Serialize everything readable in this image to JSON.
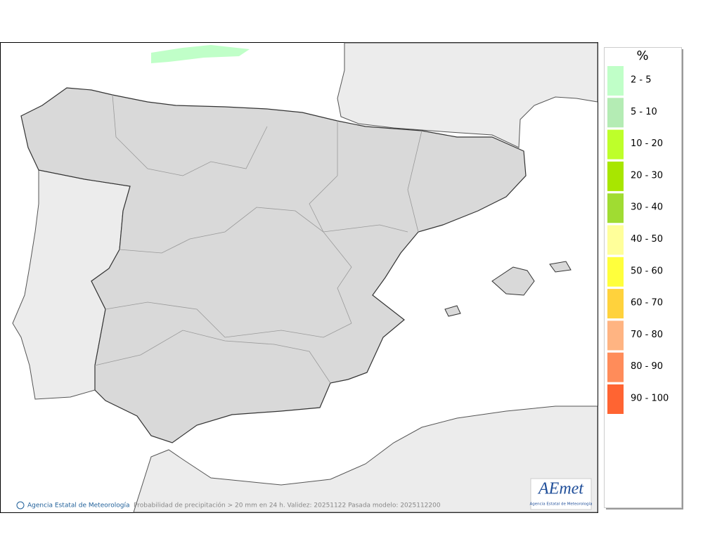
{
  "map": {
    "footer": {
      "copyright": "Agencia Estatal de Meteorología",
      "caption": "Probabilidad de precipitación > 20 mm en 24 h. Validez: 20251122 Pasada modelo: 2025112200"
    },
    "logo": {
      "name": "AEmet",
      "subtitle": "Agencia Estatal de Meteorología"
    }
  },
  "legend": {
    "title": "%",
    "items": [
      {
        "label": "2 - 5",
        "color": "#c0ffc8"
      },
      {
        "label": "5 - 10",
        "color": "#b4ecb4"
      },
      {
        "label": "10 - 20",
        "color": "#beff2a"
      },
      {
        "label": "20 - 30",
        "color": "#a8e600"
      },
      {
        "label": "30 - 40",
        "color": "#a0dc32"
      },
      {
        "label": "40 - 50",
        "color": "#ffff9a"
      },
      {
        "label": "50 - 60",
        "color": "#ffff3c"
      },
      {
        "label": "60 - 70",
        "color": "#ffd23c"
      },
      {
        "label": "70 - 80",
        "color": "#ffb482"
      },
      {
        "label": "80 - 90",
        "color": "#ff8c5a"
      },
      {
        "label": "90 - 100",
        "color": "#ff6432"
      }
    ]
  }
}
